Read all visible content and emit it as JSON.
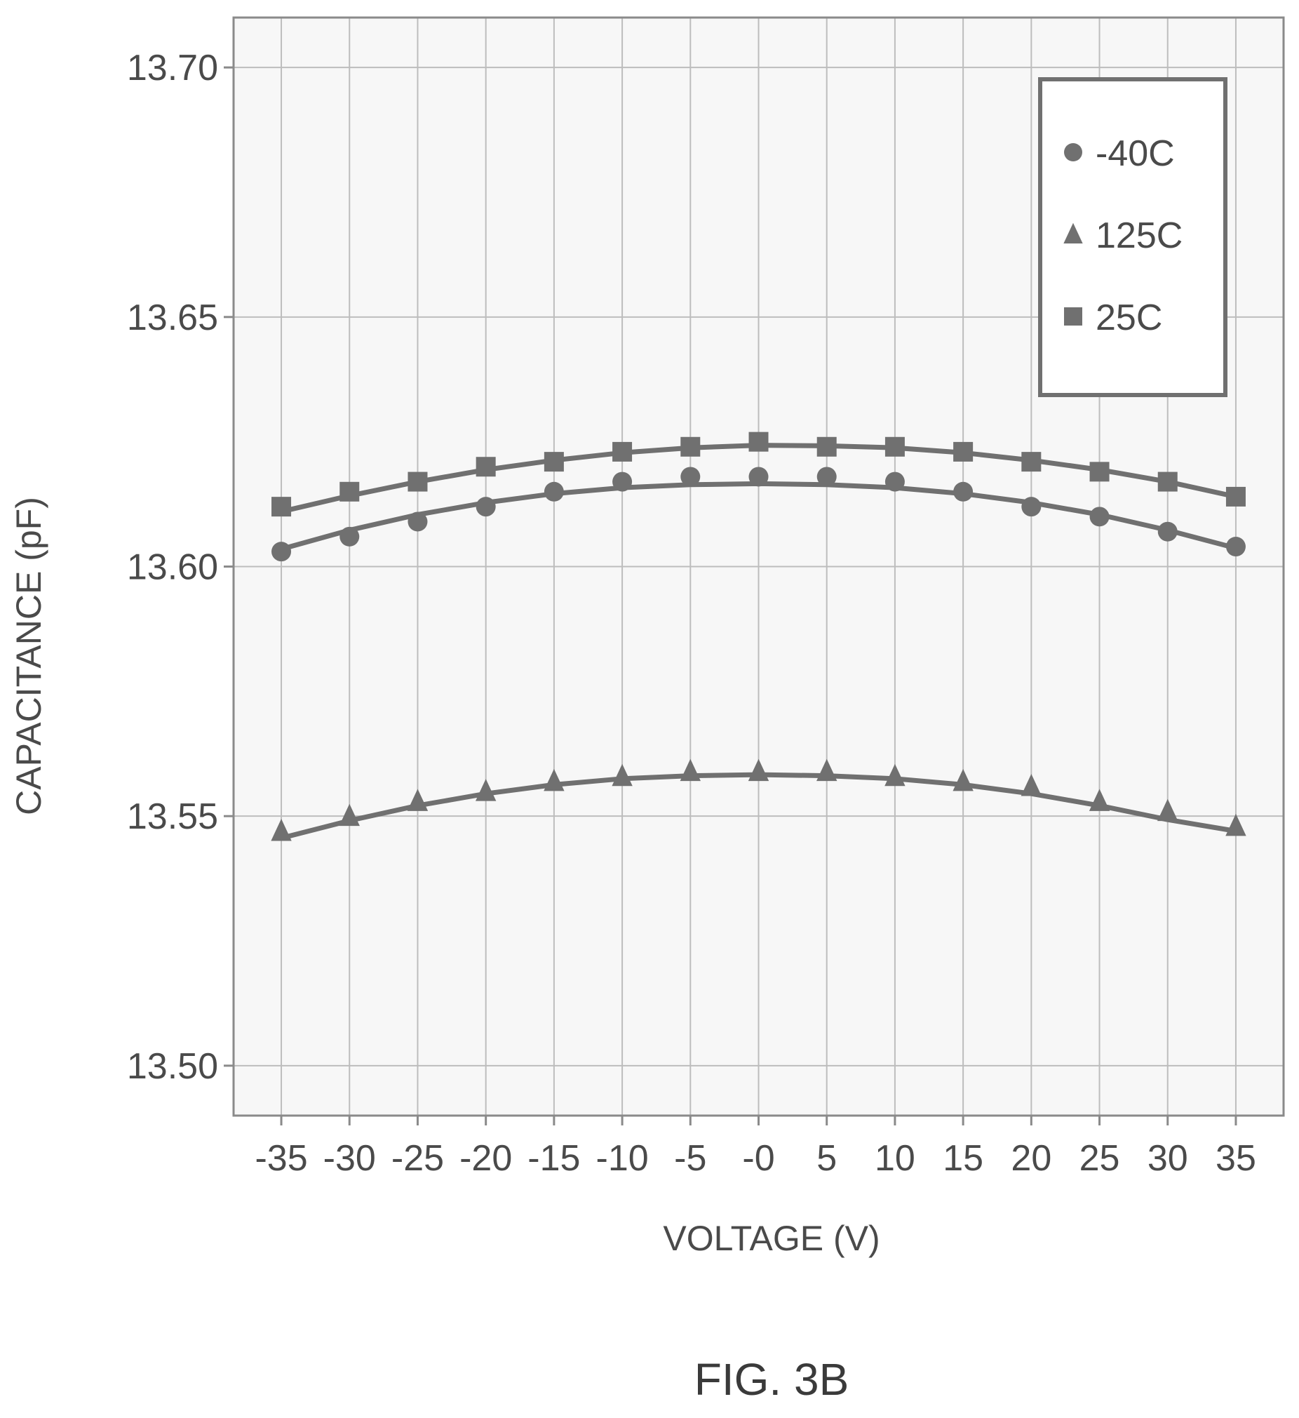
{
  "colors": {
    "series": "#707070",
    "grid": "#bdbdbd",
    "frame": "#8a8a8a",
    "legend_frame": "#707070",
    "text": "#4a4a4a"
  },
  "caption": "FIG. 3B",
  "chart_data": {
    "type": "line",
    "xlabel": "VOLTAGE (V)",
    "ylabel": "CAPACITANCE (pF)",
    "ylim": [
      13.49,
      13.71
    ],
    "yticks": [
      13.5,
      13.55,
      13.6,
      13.65,
      13.7
    ],
    "ytick_labels": [
      "13.50",
      "13.55",
      "13.60",
      "13.65",
      "13.70"
    ],
    "x": [
      -35,
      -30,
      -25,
      -20,
      -15,
      -10,
      -5,
      0,
      5,
      10,
      15,
      20,
      25,
      30,
      35
    ],
    "xtick_labels": [
      "-35",
      "-30",
      "-25",
      "-20",
      "-15",
      "-10",
      "-5",
      "-0",
      "5",
      "10",
      "15",
      "20",
      "25",
      "30",
      "35"
    ],
    "grid": true,
    "legend_position": "top-right",
    "series": [
      {
        "name": "-40C",
        "marker": "circle",
        "points": [
          13.603,
          13.606,
          13.609,
          13.612,
          13.615,
          13.617,
          13.618,
          13.618,
          13.618,
          13.617,
          13.615,
          13.612,
          13.61,
          13.607,
          13.604
        ],
        "fit": [
          13.6035,
          13.6073,
          13.6104,
          13.6128,
          13.6146,
          13.6158,
          13.6164,
          13.6166,
          13.6164,
          13.6158,
          13.6146,
          13.6128,
          13.6104,
          13.6073,
          13.6037
        ]
      },
      {
        "name": "125C",
        "marker": "triangle",
        "points": [
          13.547,
          13.55,
          13.553,
          13.555,
          13.557,
          13.558,
          13.559,
          13.559,
          13.559,
          13.558,
          13.557,
          13.556,
          13.553,
          13.551,
          13.548
        ],
        "fit": [
          13.5456,
          13.5491,
          13.5521,
          13.5545,
          13.5563,
          13.5575,
          13.5581,
          13.5583,
          13.5581,
          13.5575,
          13.5563,
          13.5545,
          13.5521,
          13.5493,
          13.547
        ]
      },
      {
        "name": "25C",
        "marker": "square",
        "points": [
          13.612,
          13.615,
          13.617,
          13.62,
          13.621,
          13.623,
          13.624,
          13.625,
          13.624,
          13.624,
          13.623,
          13.621,
          13.619,
          13.617,
          13.614
        ],
        "fit": [
          13.611,
          13.6142,
          13.617,
          13.6194,
          13.6213,
          13.6228,
          13.6238,
          13.6243,
          13.6242,
          13.6238,
          13.6228,
          13.6213,
          13.6194,
          13.617,
          13.614
        ]
      }
    ]
  }
}
